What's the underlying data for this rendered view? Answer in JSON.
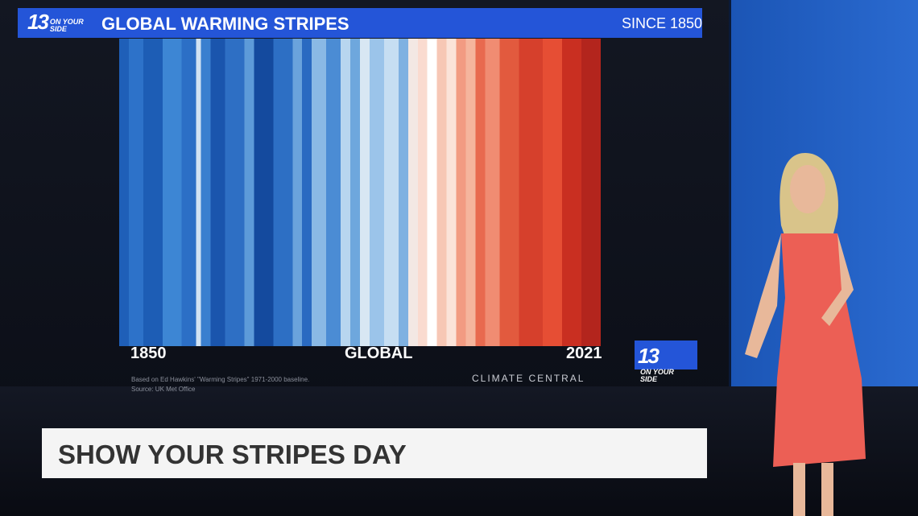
{
  "header": {
    "logo_number": "13",
    "logo_text": "ON YOUR SIDE",
    "title": "GLOBAL WARMING STRIPES",
    "subtitle": "SINCE 1850"
  },
  "stripes": {
    "start_label": "1850",
    "center_label": "GLOBAL",
    "end_label": "2021"
  },
  "footer": {
    "note": "Based on Ed Hawkins' \"Warming Stripes\" 1971-2000 baseline.",
    "source": "Source: UK Met Office",
    "credit": "CLIMATE CENTRAL",
    "logo_number": "13",
    "logo_text": "ON YOUR SIDE"
  },
  "lower_third": {
    "headline": "SHOW YOUR STRIPES DAY"
  }
}
